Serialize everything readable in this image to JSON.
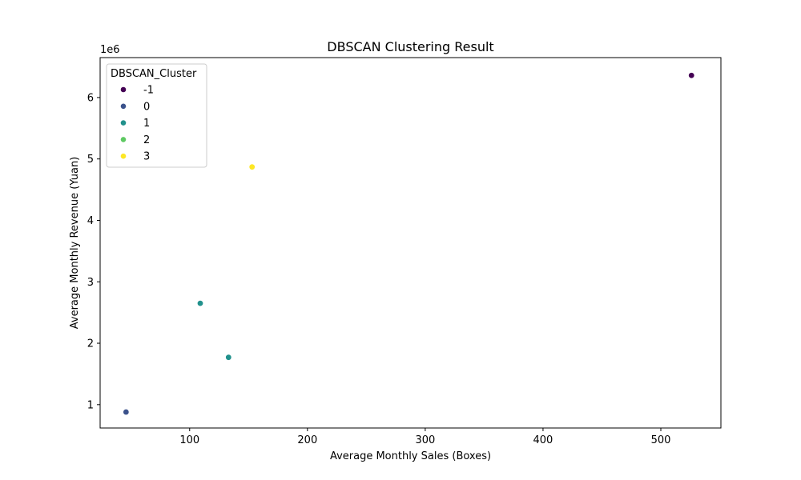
{
  "chart_data": {
    "type": "scatter",
    "title": "DBSCAN Clustering Result",
    "xlabel": "Average Monthly Sales (Boxes)",
    "ylabel": "Average Monthly Revenue (Yuan)",
    "y_offset_label": "1e6",
    "xlim": [
      24,
      551
    ],
    "ylim": [
      0.62,
      6.65
    ],
    "x_ticks": [
      100,
      200,
      300,
      400,
      500
    ],
    "x_tick_labels": [
      "100",
      "200",
      "300",
      "400",
      "500"
    ],
    "y_ticks": [
      1,
      2,
      3,
      4,
      5,
      6
    ],
    "y_tick_labels": [
      "1",
      "2",
      "3",
      "4",
      "5",
      "6"
    ],
    "y_units_multiplier": 1000000,
    "grid": false,
    "legend": {
      "title": "DBSCAN_Cluster",
      "placement": "top-left",
      "entries": [
        {
          "label": "-1",
          "color": "#440154"
        },
        {
          "label": "0",
          "color": "#3b528b"
        },
        {
          "label": "1",
          "color": "#21918c"
        },
        {
          "label": "2",
          "color": "#5ec962"
        },
        {
          "label": "3",
          "color": "#fde725"
        }
      ]
    },
    "points": [
      {
        "x": 526,
        "y": 6.36,
        "cluster": "-1"
      },
      {
        "x": 46,
        "y": 0.88,
        "cluster": "0"
      },
      {
        "x": 109,
        "y": 2.65,
        "cluster": "1"
      },
      {
        "x": 133,
        "y": 1.77,
        "cluster": "1"
      },
      {
        "x": 153,
        "y": 4.87,
        "cluster": "3"
      }
    ]
  }
}
